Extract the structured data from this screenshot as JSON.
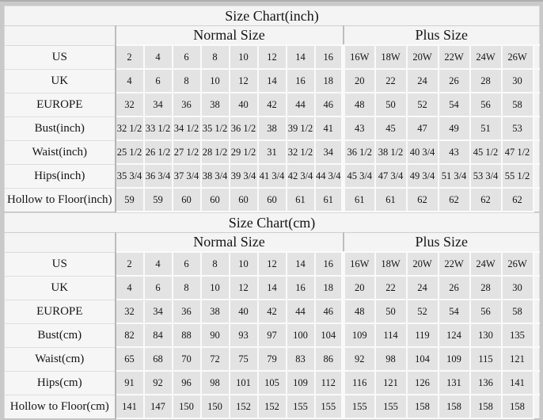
{
  "page_bg": "#c9c9c9",
  "table_bg": "#f4f4f4",
  "data_cell_bg": "#e3e3e3",
  "tables": [
    {
      "title": "Size Chart(inch)",
      "group_headers": [
        "Normal Size",
        "Plus Size"
      ],
      "rows": [
        {
          "label": "US",
          "normal": [
            "2",
            "4",
            "6",
            "8",
            "10",
            "12",
            "14",
            "16"
          ],
          "plus": [
            "16W",
            "18W",
            "20W",
            "22W",
            "24W",
            "26W"
          ]
        },
        {
          "label": "UK",
          "normal": [
            "4",
            "6",
            "8",
            "10",
            "12",
            "14",
            "16",
            "18"
          ],
          "plus": [
            "20",
            "22",
            "24",
            "26",
            "28",
            "30"
          ]
        },
        {
          "label": "EUROPE",
          "normal": [
            "32",
            "34",
            "36",
            "38",
            "40",
            "42",
            "44",
            "46"
          ],
          "plus": [
            "48",
            "50",
            "52",
            "54",
            "56",
            "58"
          ]
        },
        {
          "label": "Bust(inch)",
          "normal": [
            "32 1/2",
            "33 1/2",
            "34 1/2",
            "35 1/2",
            "36 1/2",
            "38",
            "39 1/2",
            "41"
          ],
          "plus": [
            "43",
            "45",
            "47",
            "49",
            "51",
            "53"
          ]
        },
        {
          "label": "Waist(inch)",
          "normal": [
            "25 1/2",
            "26 1/2",
            "27 1/2",
            "28 1/2",
            "29 1/2",
            "31",
            "32 1/2",
            "34"
          ],
          "plus": [
            "36 1/2",
            "38 1/2",
            "40 3/4",
            "43",
            "45 1/2",
            "47 1/2"
          ]
        },
        {
          "label": "Hips(inch)",
          "normal": [
            "35 3/4",
            "36 3/4",
            "37 3/4",
            "38 3/4",
            "39 3/4",
            "41 3/4",
            "42 3/4",
            "44 3/4"
          ],
          "plus": [
            "45 3/4",
            "47 3/4",
            "49 3/4",
            "51 3/4",
            "53 3/4",
            "55 1/2"
          ]
        },
        {
          "label": "Hollow to Floor(inch)",
          "normal": [
            "59",
            "59",
            "60",
            "60",
            "60",
            "60",
            "61",
            "61"
          ],
          "plus": [
            "61",
            "61",
            "62",
            "62",
            "62",
            "62"
          ]
        }
      ]
    },
    {
      "title": "Size Chart(cm)",
      "group_headers": [
        "Normal Size",
        "Plus Size"
      ],
      "rows": [
        {
          "label": "US",
          "normal": [
            "2",
            "4",
            "6",
            "8",
            "10",
            "12",
            "14",
            "16"
          ],
          "plus": [
            "16W",
            "18W",
            "20W",
            "22W",
            "24W",
            "26W"
          ]
        },
        {
          "label": "UK",
          "normal": [
            "4",
            "6",
            "8",
            "10",
            "12",
            "14",
            "16",
            "18"
          ],
          "plus": [
            "20",
            "22",
            "24",
            "26",
            "28",
            "30"
          ]
        },
        {
          "label": "EUROPE",
          "normal": [
            "32",
            "34",
            "36",
            "38",
            "40",
            "42",
            "44",
            "46"
          ],
          "plus": [
            "48",
            "50",
            "52",
            "54",
            "56",
            "58"
          ]
        },
        {
          "label": "Bust(cm)",
          "normal": [
            "82",
            "84",
            "88",
            "90",
            "93",
            "97",
            "100",
            "104"
          ],
          "plus": [
            "109",
            "114",
            "119",
            "124",
            "130",
            "135"
          ]
        },
        {
          "label": "Waist(cm)",
          "normal": [
            "65",
            "68",
            "70",
            "72",
            "75",
            "79",
            "83",
            "86"
          ],
          "plus": [
            "92",
            "98",
            "104",
            "109",
            "115",
            "121"
          ]
        },
        {
          "label": "Hips(cm)",
          "normal": [
            "91",
            "92",
            "96",
            "98",
            "101",
            "105",
            "109",
            "112"
          ],
          "plus": [
            "116",
            "121",
            "126",
            "131",
            "136",
            "141"
          ]
        },
        {
          "label": "Hollow to Floor(cm)",
          "normal": [
            "141",
            "147",
            "150",
            "150",
            "152",
            "152",
            "155",
            "155"
          ],
          "plus": [
            "155",
            "155",
            "158",
            "158",
            "158",
            "158"
          ]
        }
      ]
    }
  ]
}
